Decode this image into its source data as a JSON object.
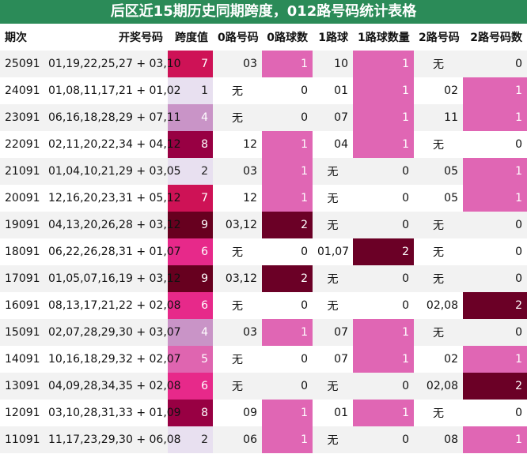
{
  "title": "后区近15期历史同期跨度，012路号码统计表格",
  "headers": [
    "期次",
    "开奖号码",
    "跨度值",
    "0路号码",
    "0路球数",
    "1路球",
    "1路球数量",
    "2路号码",
    "2路号码数"
  ],
  "colors": {
    "title_bg": "#2b8b58",
    "pink_light": "#e066b4",
    "dark_red": "#6b0026",
    "lavender_light": "#e8e0f0",
    "lavender": "#c994c7",
    "pink": "#df65b0",
    "hot_pink": "#e7298a",
    "crimson": "#ce1256",
    "maroon": "#980043",
    "dark_maroon": "#67001f"
  },
  "rows": [
    {
      "issue": "25091",
      "numbers": "01,19,22,25,27 + 03,10",
      "span": "7",
      "zero_nums": "03",
      "zero_count": "1",
      "one_nums": "10",
      "one_count": "1",
      "two_nums": "无",
      "two_count": "0"
    },
    {
      "issue": "24091",
      "numbers": "01,08,11,17,21 + 01,02",
      "span": "1",
      "zero_nums": "无",
      "zero_count": "0",
      "one_nums": "01",
      "one_count": "1",
      "two_nums": "02",
      "two_count": "1"
    },
    {
      "issue": "23091",
      "numbers": "06,16,18,28,29 + 07,11",
      "span": "4",
      "zero_nums": "无",
      "zero_count": "0",
      "one_nums": "07",
      "one_count": "1",
      "two_nums": "11",
      "two_count": "1"
    },
    {
      "issue": "22091",
      "numbers": "02,11,20,22,34 + 04,12",
      "span": "8",
      "zero_nums": "12",
      "zero_count": "1",
      "one_nums": "04",
      "one_count": "1",
      "two_nums": "无",
      "two_count": "0"
    },
    {
      "issue": "21091",
      "numbers": "01,04,10,21,29 + 03,05",
      "span": "2",
      "zero_nums": "03",
      "zero_count": "1",
      "one_nums": "无",
      "one_count": "0",
      "two_nums": "05",
      "two_count": "1"
    },
    {
      "issue": "20091",
      "numbers": "12,16,20,23,31 + 05,12",
      "span": "7",
      "zero_nums": "12",
      "zero_count": "1",
      "one_nums": "无",
      "one_count": "0",
      "two_nums": "05",
      "two_count": "1"
    },
    {
      "issue": "19091",
      "numbers": "04,13,20,26,28 + 03,12",
      "span": "9",
      "zero_nums": "03,12",
      "zero_count": "2",
      "one_nums": "无",
      "one_count": "0",
      "two_nums": "无",
      "two_count": "0"
    },
    {
      "issue": "18091",
      "numbers": "06,22,26,28,31 + 01,07",
      "span": "6",
      "zero_nums": "无",
      "zero_count": "0",
      "one_nums": "01,07",
      "one_count": "2",
      "two_nums": "无",
      "two_count": "0"
    },
    {
      "issue": "17091",
      "numbers": "01,05,07,16,19 + 03,12",
      "span": "9",
      "zero_nums": "03,12",
      "zero_count": "2",
      "one_nums": "无",
      "one_count": "0",
      "two_nums": "无",
      "two_count": "0"
    },
    {
      "issue": "16091",
      "numbers": "08,13,17,21,22 + 02,08",
      "span": "6",
      "zero_nums": "无",
      "zero_count": "0",
      "one_nums": "无",
      "one_count": "0",
      "two_nums": "02,08",
      "two_count": "2"
    },
    {
      "issue": "15091",
      "numbers": "02,07,28,29,30 + 03,07",
      "span": "4",
      "zero_nums": "03",
      "zero_count": "1",
      "one_nums": "07",
      "one_count": "1",
      "two_nums": "无",
      "two_count": "0"
    },
    {
      "issue": "14091",
      "numbers": "10,16,18,29,32 + 02,07",
      "span": "5",
      "zero_nums": "无",
      "zero_count": "0",
      "one_nums": "07",
      "one_count": "1",
      "two_nums": "02",
      "two_count": "1"
    },
    {
      "issue": "13091",
      "numbers": "04,09,28,34,35 + 02,08",
      "span": "6",
      "zero_nums": "无",
      "zero_count": "0",
      "one_nums": "无",
      "one_count": "0",
      "two_nums": "02,08",
      "two_count": "2"
    },
    {
      "issue": "12091",
      "numbers": "03,10,28,31,33 + 01,09",
      "span": "8",
      "zero_nums": "09",
      "zero_count": "1",
      "one_nums": "01",
      "one_count": "1",
      "two_nums": "无",
      "two_count": "0"
    },
    {
      "issue": "11091",
      "numbers": "11,17,23,29,30 + 06,08",
      "span": "2",
      "zero_nums": "06",
      "zero_count": "1",
      "one_nums": "无",
      "one_count": "0",
      "two_nums": "08",
      "two_count": "1"
    }
  ]
}
